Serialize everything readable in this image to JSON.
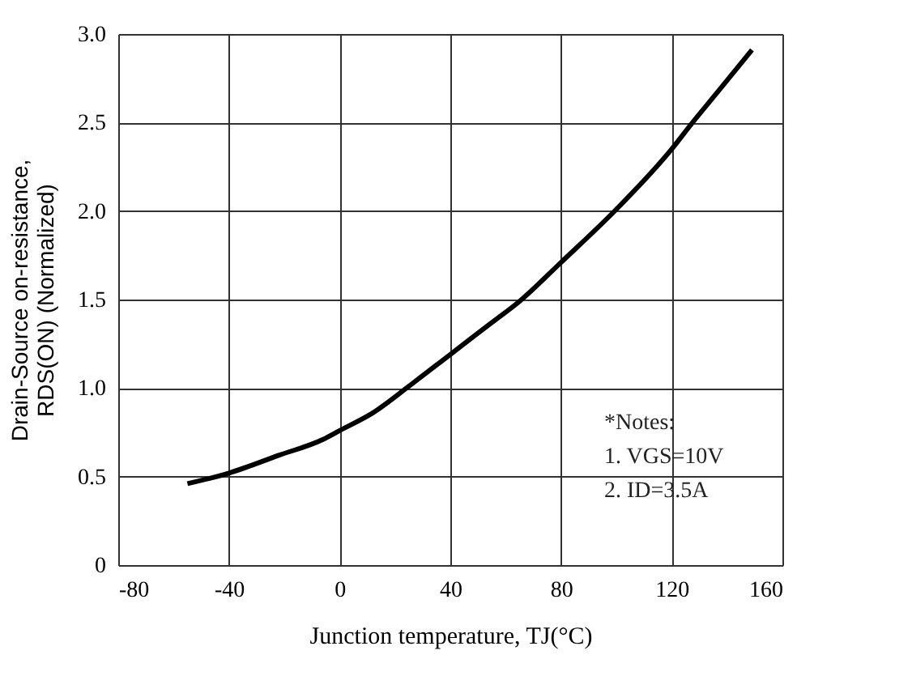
{
  "chart_data": {
    "type": "line",
    "xlabel": "Junction temperature, TJ(°C)",
    "ylabel": "Drain-Source on-resistance,\nRDS(ON) (Normalized)",
    "x": [
      -55,
      -40,
      -22,
      -6,
      0,
      12,
      25,
      40,
      55,
      65,
      80,
      100,
      120,
      127,
      137,
      149
    ],
    "series": [
      {
        "color": "#000000",
        "values": [
          0.46,
          0.52,
          0.62,
          0.71,
          0.76,
          0.86,
          1.01,
          1.19,
          1.37,
          1.49,
          1.71,
          2.01,
          2.35,
          2.49,
          2.68,
          2.91
        ]
      }
    ],
    "xlim": [
      -80,
      160
    ],
    "xticks": [
      -80,
      -40,
      0,
      40,
      80,
      120,
      160
    ],
    "ylim": [
      0,
      3
    ],
    "yticks": [
      0,
      0.5,
      {
        "value": 1,
        "label": "1.0"
      },
      1.5,
      {
        "value": 2,
        "label": "2.0"
      },
      2.5,
      {
        "value": 3,
        "label": "3.0"
      }
    ],
    "grid": true,
    "marker": "none",
    "line_style": "solid",
    "annotations": [
      "*Notes:",
      "1. VGS=10V",
      "2. ID=3.5A"
    ]
  }
}
